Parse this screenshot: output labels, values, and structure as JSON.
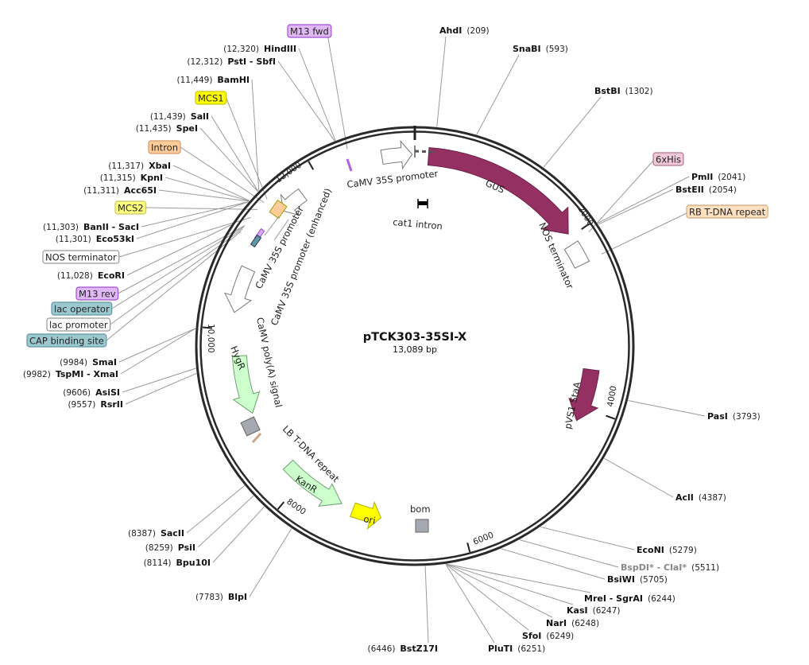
{
  "map": {
    "name": "pTCK303-35SI-X",
    "length_label": "13,089 bp",
    "length_bp": 13089
  },
  "ticks": [
    {
      "bp": 2000,
      "label": "2000"
    },
    {
      "bp": 4000,
      "label": "4000"
    },
    {
      "bp": 6000,
      "label": "6000"
    },
    {
      "bp": 8000,
      "label": "8000"
    },
    {
      "bp": 10000,
      "label": "10,000"
    },
    {
      "bp": 12000,
      "label": "12,000"
    }
  ],
  "enzymes": [
    {
      "name": "AhdI",
      "pos": "(209)",
      "bp": 209
    },
    {
      "name": "SnaBI",
      "pos": "(593)",
      "bp": 593
    },
    {
      "name": "BstBI",
      "pos": "(1302)",
      "bp": 1302
    },
    {
      "name": "PmlI",
      "pos": "(2041)",
      "bp": 2041
    },
    {
      "name": "BstEII",
      "pos": "(2054)",
      "bp": 2054
    },
    {
      "name": "PasI",
      "pos": "(3793)",
      "bp": 3793
    },
    {
      "name": "AclI",
      "pos": "(4387)",
      "bp": 4387
    },
    {
      "name": "EcoNI",
      "pos": "(5279)",
      "bp": 5279
    },
    {
      "name": "BspDI* - ClaI*",
      "pos": "(5511)",
      "bp": 5511,
      "muted": true
    },
    {
      "name": "BsiWI",
      "pos": "(5705)",
      "bp": 5705
    },
    {
      "name": "MreI - SgrAI",
      "pos": "(6244)",
      "bp": 6244
    },
    {
      "name": "KasI",
      "pos": "(6247)",
      "bp": 6247
    },
    {
      "name": "NarI",
      "pos": "(6248)",
      "bp": 6248
    },
    {
      "name": "SfoI",
      "pos": "(6249)",
      "bp": 6249
    },
    {
      "name": "PluTI",
      "pos": "(6251)",
      "bp": 6251
    },
    {
      "name": "BstZ17I",
      "pos": "(6446)",
      "bp": 6446
    },
    {
      "name": "BlpI",
      "pos": "(7783)",
      "bp": 7783
    },
    {
      "name": "Bpu10I",
      "pos": "(8114)",
      "bp": 8114
    },
    {
      "name": "PsiI",
      "pos": "(8259)",
      "bp": 8259
    },
    {
      "name": "SacII",
      "pos": "(8387)",
      "bp": 8387
    },
    {
      "name": "RsrII",
      "pos": "(9557)",
      "bp": 9557
    },
    {
      "name": "AsiSI",
      "pos": "(9606)",
      "bp": 9606
    },
    {
      "name": "TspMI - XmaI",
      "pos": "(9982)",
      "bp": 9982
    },
    {
      "name": "SmaI",
      "pos": "(9984)",
      "bp": 9984
    },
    {
      "name": "EcoRI",
      "pos": "(11,028)",
      "bp": 11028
    },
    {
      "name": "Eco53kI",
      "pos": "(11,301)",
      "bp": 11301
    },
    {
      "name": "BanII - SacI",
      "pos": "(11,303)",
      "bp": 11303
    },
    {
      "name": "Acc65I",
      "pos": "(11,311)",
      "bp": 11311
    },
    {
      "name": "KpnI",
      "pos": "(11,315)",
      "bp": 11315
    },
    {
      "name": "XbaI",
      "pos": "(11,317)",
      "bp": 11317
    },
    {
      "name": "SpeI",
      "pos": "(11,435)",
      "bp": 11435
    },
    {
      "name": "SalI",
      "pos": "(11,439)",
      "bp": 11439
    },
    {
      "name": "BamHI",
      "pos": "(11,449)",
      "bp": 11449
    },
    {
      "name": "PstI - SbfI",
      "pos": "(12,312)",
      "bp": 12312
    },
    {
      "name": "HindIII",
      "pos": "(12,320)",
      "bp": 12320
    }
  ],
  "chips": [
    {
      "label": "M13 fwd",
      "bp": 12400,
      "fill": "#e0b8f5",
      "stroke": "#a050d0"
    },
    {
      "label": "MCS1",
      "bp": 11445,
      "fill": "#ffff00",
      "stroke": "#c8c800"
    },
    {
      "label": "Intron",
      "bp": 11400,
      "fill": "#ffcc99",
      "stroke": "#d09a6a"
    },
    {
      "label": "MCS2",
      "bp": 11305,
      "fill": "#ffff80",
      "stroke": "#c8c860"
    },
    {
      "label": "NOS terminator",
      "bp": 11200,
      "fill": "#ffffff",
      "stroke": "#999999"
    },
    {
      "label": "M13 rev",
      "bp": 11100,
      "fill": "#e0b8f5",
      "stroke": "#a050d0"
    },
    {
      "label": "lac operator",
      "bp": 11085,
      "fill": "#9cc8d0",
      "stroke": "#5f99a5"
    },
    {
      "label": "lac promoter",
      "bp": 11060,
      "fill": "#ffffff",
      "stroke": "#999999"
    },
    {
      "label": "CAP binding site",
      "bp": 11030,
      "fill": "#9cc8d0",
      "stroke": "#5f99a5"
    },
    {
      "label": "6xHis",
      "bp": 2065,
      "fill": "#f0c8d8",
      "stroke": "#b07890"
    },
    {
      "label": "RB T-DNA repeat",
      "bp": 2320,
      "fill": "#fde0c0",
      "stroke": "#d0a880"
    }
  ],
  "features": [
    {
      "label": "CaMV 35S promoter",
      "start": 12730,
      "end": 13060,
      "dir": 1,
      "fill": "#ffffff",
      "stroke": "#777777"
    },
    {
      "label": "GUS",
      "start": 150,
      "end": 1960,
      "dir": 1,
      "fill": "#953063",
      "stroke": "#6e2048"
    },
    {
      "label": "NOS terminator",
      "start": 2080,
      "end": 2330,
      "dir": 0,
      "fill": "#ffffff",
      "stroke": "#777777"
    },
    {
      "label": "pVS1 StaA",
      "start": 3550,
      "end": 4170,
      "dir": 1,
      "fill": "#953063",
      "stroke": "#6e2048"
    },
    {
      "label": "ori",
      "start": 6950,
      "end": 7300,
      "dir": -1,
      "fill": "#ffff00",
      "stroke": "#b0b000"
    },
    {
      "label": "KanR",
      "start": 7450,
      "end": 8250,
      "dir": -1,
      "fill": "#ccffcc",
      "stroke": "#70a070"
    },
    {
      "label": "HygR",
      "start": 9000,
      "end": 9700,
      "dir": -1,
      "fill": "#ccffcc",
      "stroke": "#70a070"
    },
    {
      "label": "CaMV 35S promoter",
      "start": 10200,
      "end": 10720,
      "dir": -1,
      "fill": "#ffffff",
      "stroke": "#777777"
    },
    {
      "label": "CaMV 35S promoter (enhanced)",
      "start": 11480,
      "end": 11760,
      "dir": -1,
      "fill": "#ffffff",
      "stroke": "#777777"
    }
  ],
  "inner_labels": {
    "camv_top": "CaMV 35S promoter",
    "gus": "GUS",
    "cat1": "cat1 intron",
    "nos_right": "NOS terminator",
    "pvs1": "pVS1 StaA",
    "bom": "bom",
    "ori": "ori",
    "kanr": "KanR",
    "lb": "LB T-DNA repeat",
    "hygr": "HygR",
    "polya": "CaMV poly(A) signal",
    "camv_left": "CaMV 35S promoter",
    "camv_enh": "CaMV 35S promoter (enhanced)"
  }
}
